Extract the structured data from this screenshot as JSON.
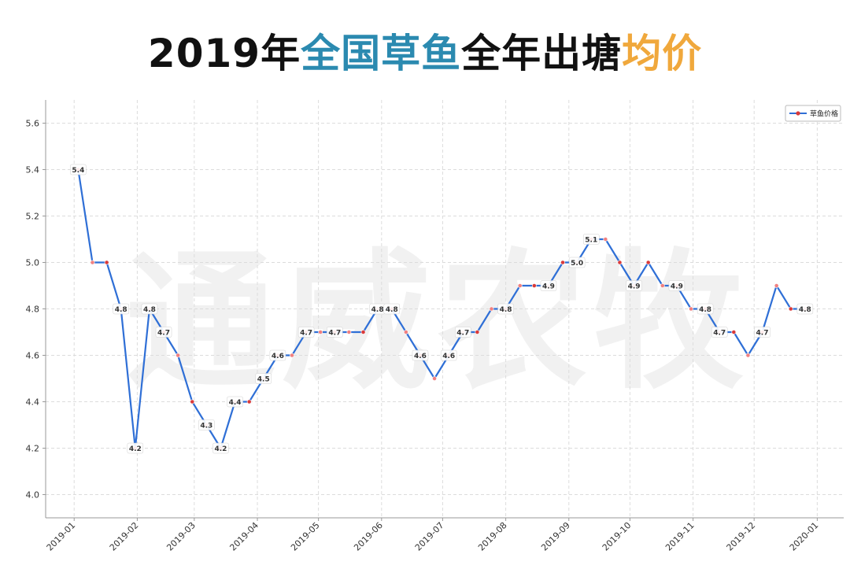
{
  "title": {
    "part1": "2019年",
    "part2": "全国草鱼",
    "part3": "全年出塘",
    "part4": "均价",
    "colors": {
      "main": "#111111",
      "highlight_blue": "#2b8ab0",
      "highlight_orange": "#f0a83c"
    }
  },
  "watermark": "通威农牧",
  "chart_data": {
    "type": "line",
    "title": "2019年全国草鱼全年出塘均价",
    "xlabel": "",
    "ylabel": "",
    "ylim": [
      3.9,
      5.7
    ],
    "yticks": [
      4.0,
      4.2,
      4.4,
      4.6,
      4.8,
      5.0,
      5.2,
      5.4,
      5.6
    ],
    "ytick_labels": [
      "4.0",
      "4.2",
      "4.4",
      "4.6",
      "4.8",
      "5.0",
      "5.2",
      "5.4",
      "5.6"
    ],
    "xlim": [
      "2018-12-18",
      "2020-01-14"
    ],
    "xticks": [
      "2019-01-01",
      "2019-02-01",
      "2019-03-01",
      "2019-04-01",
      "2019-05-01",
      "2019-06-01",
      "2019-07-01",
      "2019-08-01",
      "2019-09-01",
      "2019-10-01",
      "2019-11-01",
      "2019-12-01",
      "2020-01-01"
    ],
    "xtick_labels": [
      "2019-01",
      "2019-02",
      "2019-03",
      "2019-04",
      "2019-05",
      "2019-06",
      "2019-07",
      "2019-08",
      "2019-09",
      "2019-10",
      "2019-11",
      "2019-12",
      "2020-01"
    ],
    "grid": true,
    "legend_position": "top-right",
    "line_color": "#2f6fd6",
    "marker_colors": [
      "#d93a3a",
      "#f08080"
    ],
    "series": [
      {
        "name": "草鱼价格",
        "points": [
          {
            "x": "2019-01-03",
            "y": 5.4,
            "label": "5.4"
          },
          {
            "x": "2019-01-10",
            "y": 5.0,
            "label": ""
          },
          {
            "x": "2019-01-17",
            "y": 5.0,
            "label": ""
          },
          {
            "x": "2019-01-24",
            "y": 4.8,
            "label": "4.8"
          },
          {
            "x": "2019-01-31",
            "y": 4.2,
            "label": "4.2"
          },
          {
            "x": "2019-02-07",
            "y": 4.8,
            "label": "4.8"
          },
          {
            "x": "2019-02-14",
            "y": 4.7,
            "label": "4.7"
          },
          {
            "x": "2019-02-21",
            "y": 4.6,
            "label": ""
          },
          {
            "x": "2019-02-28",
            "y": 4.4,
            "label": ""
          },
          {
            "x": "2019-03-07",
            "y": 4.3,
            "label": "4.3"
          },
          {
            "x": "2019-03-14",
            "y": 4.2,
            "label": "4.2"
          },
          {
            "x": "2019-03-21",
            "y": 4.4,
            "label": "4.4"
          },
          {
            "x": "2019-03-28",
            "y": 4.4,
            "label": ""
          },
          {
            "x": "2019-04-04",
            "y": 4.5,
            "label": "4.5"
          },
          {
            "x": "2019-04-11",
            "y": 4.6,
            "label": "4.6"
          },
          {
            "x": "2019-04-18",
            "y": 4.6,
            "label": ""
          },
          {
            "x": "2019-04-25",
            "y": 4.7,
            "label": "4.7"
          },
          {
            "x": "2019-05-02",
            "y": 4.7,
            "label": ""
          },
          {
            "x": "2019-05-09",
            "y": 4.7,
            "label": "4.7"
          },
          {
            "x": "2019-05-16",
            "y": 4.7,
            "label": ""
          },
          {
            "x": "2019-05-23",
            "y": 4.7,
            "label": ""
          },
          {
            "x": "2019-05-30",
            "y": 4.8,
            "label": "4.8"
          },
          {
            "x": "2019-06-06",
            "y": 4.8,
            "label": "4.8"
          },
          {
            "x": "2019-06-13",
            "y": 4.7,
            "label": ""
          },
          {
            "x": "2019-06-20",
            "y": 4.6,
            "label": "4.6"
          },
          {
            "x": "2019-06-27",
            "y": 4.5,
            "label": ""
          },
          {
            "x": "2019-07-04",
            "y": 4.6,
            "label": "4.6"
          },
          {
            "x": "2019-07-11",
            "y": 4.7,
            "label": "4.7"
          },
          {
            "x": "2019-07-18",
            "y": 4.7,
            "label": ""
          },
          {
            "x": "2019-07-25",
            "y": 4.8,
            "label": ""
          },
          {
            "x": "2019-08-01",
            "y": 4.8,
            "label": "4.8"
          },
          {
            "x": "2019-08-08",
            "y": 4.9,
            "label": ""
          },
          {
            "x": "2019-08-15",
            "y": 4.9,
            "label": ""
          },
          {
            "x": "2019-08-22",
            "y": 4.9,
            "label": "4.9"
          },
          {
            "x": "2019-08-29",
            "y": 5.0,
            "label": ""
          },
          {
            "x": "2019-09-05",
            "y": 5.0,
            "label": "5.0"
          },
          {
            "x": "2019-09-12",
            "y": 5.1,
            "label": "5.1"
          },
          {
            "x": "2019-09-19",
            "y": 5.1,
            "label": ""
          },
          {
            "x": "2019-09-26",
            "y": 5.0,
            "label": ""
          },
          {
            "x": "2019-10-03",
            "y": 4.9,
            "label": "4.9"
          },
          {
            "x": "2019-10-10",
            "y": 5.0,
            "label": ""
          },
          {
            "x": "2019-10-17",
            "y": 4.9,
            "label": ""
          },
          {
            "x": "2019-10-24",
            "y": 4.9,
            "label": "4.9"
          },
          {
            "x": "2019-10-31",
            "y": 4.8,
            "label": ""
          },
          {
            "x": "2019-11-07",
            "y": 4.8,
            "label": "4.8"
          },
          {
            "x": "2019-11-14",
            "y": 4.7,
            "label": "4.7"
          },
          {
            "x": "2019-11-21",
            "y": 4.7,
            "label": ""
          },
          {
            "x": "2019-11-28",
            "y": 4.6,
            "label": ""
          },
          {
            "x": "2019-12-05",
            "y": 4.7,
            "label": "4.7"
          },
          {
            "x": "2019-12-12",
            "y": 4.9,
            "label": ""
          },
          {
            "x": "2019-12-19",
            "y": 4.8,
            "label": ""
          },
          {
            "x": "2019-12-26",
            "y": 4.8,
            "label": "4.8"
          }
        ]
      }
    ]
  }
}
